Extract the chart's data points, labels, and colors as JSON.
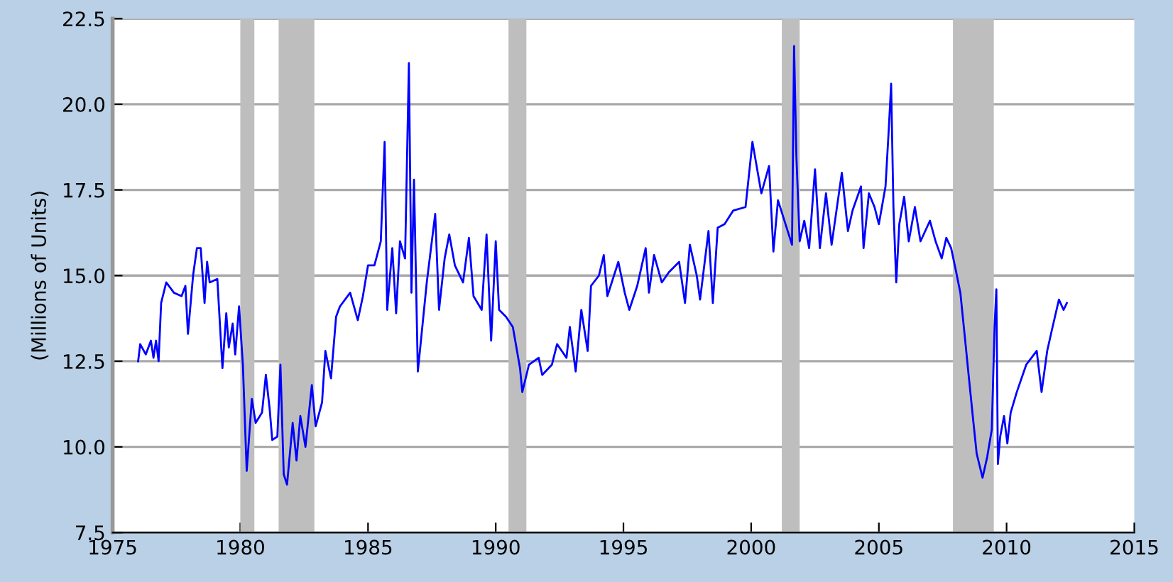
{
  "chart_data": {
    "type": "line",
    "ylabel": "(Millions of Units)",
    "xlim": [
      1975,
      2015
    ],
    "xticks": [
      1975,
      1980,
      1985,
      1990,
      1995,
      2000,
      2005,
      2010,
      2015
    ],
    "ylim": [
      7.5,
      22.5
    ],
    "yticks": [
      7.5,
      {
        "value": 10,
        "label": "10.0"
      },
      12.5,
      {
        "value": 15,
        "label": "15.0"
      },
      17.5,
      {
        "value": 20,
        "label": "20.0"
      },
      22.5
    ],
    "grid": "y",
    "marker": "none",
    "line_style": "solid",
    "bands": [
      {
        "axis": "x",
        "from": 1980.0,
        "to": 1980.55,
        "color": "#bebebe"
      },
      {
        "axis": "x",
        "from": 1981.5,
        "to": 1982.9,
        "color": "#bebebe"
      },
      {
        "axis": "x",
        "from": 1990.5,
        "to": 1991.2,
        "color": "#bebebe"
      },
      {
        "axis": "x",
        "from": 2001.2,
        "to": 2001.9,
        "color": "#bebebe"
      },
      {
        "axis": "x",
        "from": 2007.9,
        "to": 2009.5,
        "color": "#bebebe"
      }
    ],
    "series": [
      {
        "color": "#0000ff",
        "x": [
          1976.0,
          1976.08,
          1976.3,
          1976.5,
          1976.6,
          1976.7,
          1976.8,
          1976.9,
          1977.1,
          1977.4,
          1977.7,
          1977.85,
          1977.95,
          1978.15,
          1978.3,
          1978.45,
          1978.6,
          1978.7,
          1978.8,
          1979.1,
          1979.3,
          1979.45,
          1979.55,
          1979.7,
          1979.8,
          1979.95,
          1980.1,
          1980.25,
          1980.45,
          1980.6,
          1980.85,
          1981.0,
          1981.15,
          1981.25,
          1981.45,
          1981.57,
          1981.7,
          1981.83,
          1982.05,
          1982.2,
          1982.35,
          1982.55,
          1982.8,
          1982.95,
          1983.2,
          1983.33,
          1983.55,
          1983.75,
          1983.9,
          1984.3,
          1984.6,
          1984.8,
          1985.0,
          1985.25,
          1985.5,
          1985.65,
          1985.75,
          1985.95,
          1986.1,
          1986.25,
          1986.45,
          1986.6,
          1986.7,
          1986.8,
          1986.95,
          1987.3,
          1987.63,
          1987.78,
          1988.0,
          1988.18,
          1988.4,
          1988.72,
          1988.95,
          1989.13,
          1989.45,
          1989.64,
          1989.82,
          1990.0,
          1990.13,
          1990.4,
          1990.67,
          1990.95,
          1991.04,
          1991.3,
          1991.68,
          1991.82,
          1992.2,
          1992.4,
          1992.77,
          1992.9,
          1993.13,
          1993.35,
          1993.6,
          1993.73,
          1994.04,
          1994.23,
          1994.37,
          1994.8,
          1995.05,
          1995.23,
          1995.54,
          1995.87,
          1996.0,
          1996.2,
          1996.5,
          1996.78,
          1997.18,
          1997.41,
          1997.6,
          1997.87,
          1998.0,
          1998.33,
          1998.5,
          1998.69,
          1998.96,
          1999.3,
          1999.78,
          2000.05,
          2000.4,
          2000.7,
          2000.87,
          2001.05,
          2001.6,
          2001.68,
          2001.77,
          2001.9,
          2002.08,
          2002.27,
          2002.5,
          2002.69,
          2002.93,
          2003.15,
          2003.55,
          2003.79,
          2003.97,
          2004.3,
          2004.4,
          2004.61,
          2004.83,
          2005.0,
          2005.26,
          2005.39,
          2005.48,
          2005.57,
          2005.68,
          2005.8,
          2005.99,
          2006.17,
          2006.41,
          2006.63,
          2007.0,
          2007.22,
          2007.46,
          2007.64,
          2007.83,
          2008.0,
          2008.19,
          2008.38,
          2008.5,
          2008.69,
          2008.83,
          2009.06,
          2009.24,
          2009.42,
          2009.53,
          2009.6,
          2009.66,
          2009.75,
          2009.9,
          2010.03,
          2010.16,
          2010.4,
          2010.77,
          2011.18,
          2011.37,
          2011.59,
          2011.77,
          2012.05,
          2012.23,
          2012.36
        ],
        "values": [
          12.5,
          13.0,
          12.7,
          13.1,
          12.6,
          13.1,
          12.5,
          14.2,
          14.8,
          14.5,
          14.4,
          14.7,
          13.3,
          15.0,
          15.8,
          15.8,
          14.2,
          15.4,
          14.8,
          14.9,
          12.3,
          13.9,
          12.9,
          13.6,
          12.7,
          14.1,
          12.4,
          9.3,
          11.4,
          10.7,
          11.0,
          12.1,
          11.1,
          10.2,
          10.3,
          12.4,
          9.2,
          8.9,
          10.7,
          9.6,
          10.9,
          10.0,
          11.8,
          10.6,
          11.3,
          12.8,
          12.0,
          13.8,
          14.1,
          14.5,
          13.7,
          14.4,
          15.3,
          15.3,
          16.0,
          18.9,
          14.0,
          15.8,
          13.9,
          16.0,
          15.5,
          21.2,
          14.5,
          17.8,
          12.2,
          14.8,
          16.8,
          14.0,
          15.5,
          16.2,
          15.3,
          14.8,
          16.1,
          14.4,
          14.0,
          16.2,
          13.1,
          16.0,
          14.0,
          13.8,
          13.5,
          12.3,
          11.6,
          12.4,
          12.6,
          12.1,
          12.4,
          13.0,
          12.6,
          13.5,
          12.2,
          14.0,
          12.8,
          14.7,
          15.0,
          15.6,
          14.4,
          15.4,
          14.5,
          14.0,
          14.7,
          15.8,
          14.5,
          15.6,
          14.8,
          15.1,
          15.4,
          14.2,
          15.9,
          15.0,
          14.3,
          16.3,
          14.2,
          16.4,
          16.5,
          16.9,
          17.0,
          18.9,
          17.4,
          18.2,
          15.7,
          17.2,
          15.9,
          21.7,
          18.5,
          16.0,
          16.6,
          15.8,
          18.1,
          15.8,
          17.4,
          15.9,
          18.0,
          16.3,
          16.9,
          17.6,
          15.8,
          17.4,
          17.0,
          16.5,
          17.6,
          19.3,
          20.6,
          17.0,
          14.8,
          16.5,
          17.3,
          16.0,
          17.0,
          16.0,
          16.6,
          16.0,
          15.5,
          16.1,
          15.8,
          15.2,
          14.5,
          13.1,
          12.2,
          10.8,
          9.8,
          9.1,
          9.7,
          10.5,
          13.5,
          14.6,
          9.5,
          10.3,
          10.9,
          10.1,
          11.0,
          11.6,
          12.4,
          12.8,
          11.6,
          12.8,
          13.4,
          14.3,
          14.0,
          14.2
        ]
      }
    ]
  }
}
